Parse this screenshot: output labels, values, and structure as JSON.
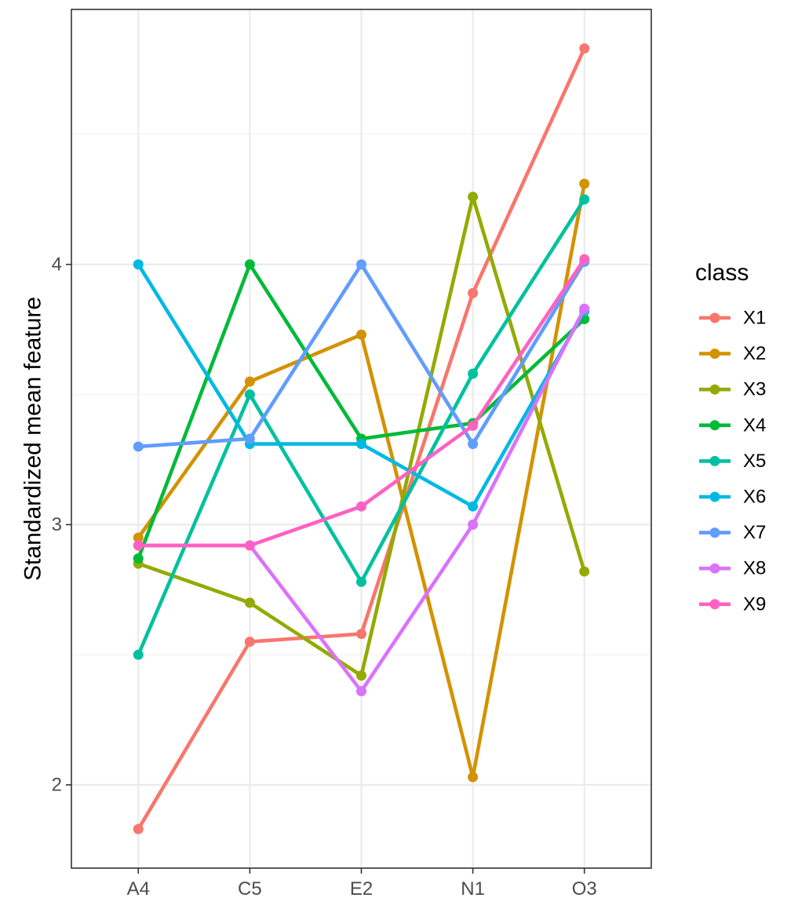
{
  "chart_data": {
    "type": "line",
    "title": "",
    "xlabel": "",
    "ylabel": "Standardized mean feature",
    "categories": [
      "A4",
      "C5",
      "E2",
      "N1",
      "O3"
    ],
    "ylim": [
      1.68,
      4.98
    ],
    "yticks": [
      2,
      3,
      4
    ],
    "grid": true,
    "legend": {
      "title": "class",
      "position": "right"
    },
    "series": [
      {
        "name": "X1",
        "color": "#F8766D",
        "values": [
          1.83,
          2.55,
          2.58,
          3.89,
          4.83
        ]
      },
      {
        "name": "X2",
        "color": "#D39200",
        "values": [
          2.95,
          3.55,
          3.73,
          2.03,
          4.31
        ]
      },
      {
        "name": "X3",
        "color": "#93AA00",
        "values": [
          2.85,
          2.7,
          2.42,
          4.26,
          2.82
        ]
      },
      {
        "name": "X4",
        "color": "#00BA38",
        "values": [
          2.87,
          4.0,
          3.33,
          3.39,
          3.79
        ]
      },
      {
        "name": "X5",
        "color": "#00C19F",
        "values": [
          2.5,
          3.5,
          2.78,
          3.58,
          4.25
        ]
      },
      {
        "name": "X6",
        "color": "#00B9E3",
        "values": [
          4.0,
          3.31,
          3.31,
          3.07,
          3.82
        ]
      },
      {
        "name": "X7",
        "color": "#619CFF",
        "values": [
          3.3,
          3.33,
          4.0,
          3.31,
          4.01
        ]
      },
      {
        "name": "X8",
        "color": "#DB72FB",
        "values": [
          2.92,
          2.92,
          2.36,
          3.0,
          3.83
        ]
      },
      {
        "name": "X9",
        "color": "#FF61C3",
        "values": [
          2.92,
          2.92,
          3.07,
          3.38,
          4.02
        ]
      }
    ]
  }
}
